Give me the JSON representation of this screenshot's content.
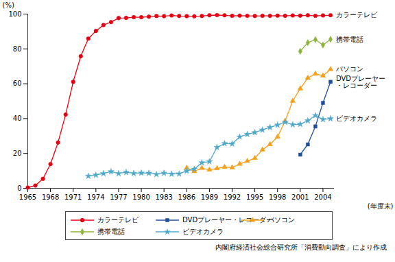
{
  "chart_data": {
    "type": "line",
    "x": [
      1965,
      1966,
      1967,
      1968,
      1969,
      1970,
      1971,
      1972,
      1973,
      1974,
      1975,
      1976,
      1977,
      1978,
      1979,
      1980,
      1981,
      1982,
      1983,
      1984,
      1985,
      1986,
      1987,
      1988,
      1989,
      1990,
      1991,
      1992,
      1993,
      1994,
      1995,
      1996,
      1997,
      1998,
      1999,
      2000,
      2001,
      2002,
      2003,
      2004,
      2005
    ],
    "xlim": [
      1965,
      2005.5
    ],
    "xticks": [
      1965,
      1968,
      1971,
      1974,
      1977,
      1980,
      1983,
      1986,
      1989,
      1992,
      1995,
      1998,
      2001,
      2004
    ],
    "x_label": "(年度末)",
    "ylim": [
      0,
      100
    ],
    "yticks": [
      0,
      20,
      40,
      60,
      80,
      100
    ],
    "y_label": "(%)",
    "grid": false,
    "legend": "bottom",
    "source": "内閣府経済社会総合研究所「消費動向調査」により作成",
    "series": [
      {
        "name": "カラーテレビ",
        "color": "#e60012",
        "marker": "circle",
        "values": [
          0.4,
          1.6,
          5.4,
          13.9,
          26.3,
          42.3,
          61.1,
          75.8,
          85.9,
          90.3,
          93.7,
          95.4,
          97.7,
          97.8,
          98.2,
          98.2,
          98.5,
          98.9,
          98.8,
          99.2,
          98.9,
          98.8,
          98.7,
          98.9,
          99.3,
          99.4,
          99.3,
          99.0,
          99.1,
          99.0,
          98.9,
          99.0,
          99.0,
          99.1,
          99.0,
          99.2,
          99.1,
          99.3,
          99.0,
          99.2,
          99.3
        ]
      },
      {
        "name": "DVDプレーヤー・レコーダー",
        "color": "#1f4e9c",
        "marker": "square",
        "values": [
          null,
          null,
          null,
          null,
          null,
          null,
          null,
          null,
          null,
          null,
          null,
          null,
          null,
          null,
          null,
          null,
          null,
          null,
          null,
          null,
          null,
          null,
          null,
          null,
          null,
          null,
          null,
          null,
          null,
          null,
          null,
          null,
          null,
          null,
          null,
          null,
          19.3,
          25.2,
          35.5,
          49.0,
          61.1
        ]
      },
      {
        "name": "パソコン",
        "color": "#f5a01a",
        "marker": "triangle",
        "values": [
          null,
          null,
          null,
          null,
          null,
          null,
          null,
          null,
          null,
          null,
          null,
          null,
          null,
          null,
          null,
          null,
          null,
          null,
          null,
          null,
          null,
          11.7,
          9.7,
          11.6,
          10.6,
          11.4,
          12.2,
          11.9,
          13.9,
          15.6,
          17.3,
          22.1,
          25.2,
          29.5,
          38.6,
          50.1,
          57.2,
          63.3,
          65.7,
          64.6,
          68.3
        ]
      },
      {
        "name": "携帯電話",
        "color": "#8cb33c",
        "marker": "diamond",
        "values": [
          null,
          null,
          null,
          null,
          null,
          null,
          null,
          null,
          null,
          null,
          null,
          null,
          null,
          null,
          null,
          null,
          null,
          null,
          null,
          null,
          null,
          null,
          null,
          null,
          null,
          null,
          null,
          null,
          null,
          null,
          null,
          null,
          null,
          null,
          null,
          null,
          78.6,
          83.6,
          85.3,
          82.2,
          85.5
        ]
      },
      {
        "name": "ビデオカメラ",
        "color": "#4fa8c8",
        "marker": "star",
        "values": [
          null,
          null,
          null,
          null,
          null,
          null,
          null,
          null,
          7.0,
          7.6,
          8.5,
          9.6,
          8.5,
          9.2,
          8.6,
          8.8,
          8.7,
          8.0,
          8.7,
          8.2,
          8.3,
          10.0,
          11.0,
          14.7,
          15.3,
          23.5,
          25.7,
          25.5,
          29.5,
          31.0,
          32.0,
          33.5,
          35.0,
          36.3,
          38.0,
          36.5,
          36.8,
          38.8,
          41.8,
          39.5,
          40.0
        ]
      }
    ]
  }
}
